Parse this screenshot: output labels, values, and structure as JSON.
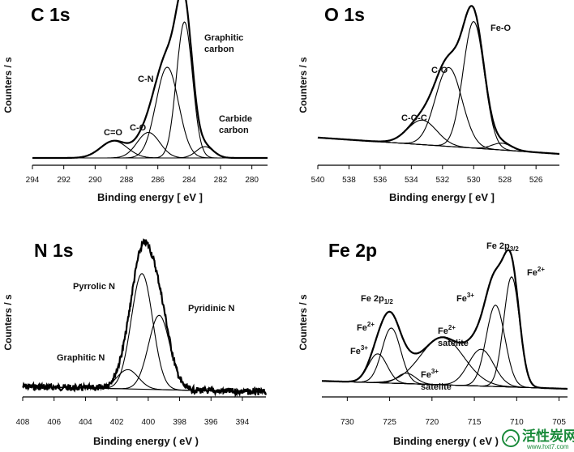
{
  "chart_data": [
    {
      "type": "line",
      "title": "C 1s",
      "xlabel": "Binding energy [ eV ]",
      "ylabel": "Counters / s",
      "xlim": [
        294,
        279
      ],
      "x_ticks": [
        294,
        292,
        290,
        288,
        286,
        284,
        282,
        280
      ],
      "annotations": [
        "C=O",
        "C-O",
        "C-N",
        "Graphitic carbon",
        "Carbide carbon"
      ],
      "peaks": [
        {
          "name": "C=O",
          "center": 288.8,
          "height": 12,
          "fwhm": 2.0
        },
        {
          "name": "C-O",
          "center": 286.6,
          "height": 18,
          "fwhm": 1.7
        },
        {
          "name": "C-N",
          "center": 285.4,
          "height": 64,
          "fwhm": 1.7
        },
        {
          "name": "Graphitic carbon",
          "center": 284.3,
          "height": 96,
          "fwhm": 1.2
        },
        {
          "name": "Carbide carbon",
          "center": 283.0,
          "height": 8,
          "fwhm": 1.3
        }
      ]
    },
    {
      "type": "line",
      "title": "O 1s",
      "xlabel": "Binding energy [ eV ]",
      "ylabel": "Counters / s",
      "xlim": [
        540,
        524.5
      ],
      "x_ticks": [
        540,
        538,
        536,
        534,
        532,
        530,
        528,
        526
      ],
      "annotations": [
        "Fe-O",
        "C-O",
        "C-O-C"
      ],
      "peaks": [
        {
          "name": "C-O-C",
          "center": 533.3,
          "height": 18,
          "fwhm": 2.2
        },
        {
          "name": "C-O",
          "center": 531.6,
          "height": 58,
          "fwhm": 2.0
        },
        {
          "name": "Fe-O",
          "center": 530.0,
          "height": 93,
          "fwhm": 1.6
        },
        {
          "name": "",
          "center": 528.2,
          "height": 5,
          "fwhm": 1.5
        }
      ]
    },
    {
      "type": "line",
      "title": "N 1s",
      "xlabel": "Binding energy ( eV )",
      "ylabel": "Counters / s",
      "xlim": [
        408,
        392.5
      ],
      "x_ticks": [
        408,
        406,
        404,
        402,
        400,
        398,
        396,
        394
      ],
      "annotations": [
        "Pyrrolic N",
        "Pyridinic N",
        "Graphitic N"
      ],
      "peaks": [
        {
          "name": "Graphitic N",
          "center": 401.3,
          "height": 14,
          "fwhm": 1.6
        },
        {
          "name": "Pyrrolic N",
          "center": 400.4,
          "height": 84,
          "fwhm": 1.6
        },
        {
          "name": "Pyridinic N",
          "center": 399.3,
          "height": 54,
          "fwhm": 1.6
        }
      ]
    },
    {
      "type": "line",
      "title": "Fe 2p",
      "xlabel": "Binding energy ( eV )",
      "ylabel": "Counters / s",
      "xlim": [
        733,
        704
      ],
      "x_ticks": [
        730,
        725,
        720,
        715,
        710,
        705
      ],
      "x_tick_labels": [
        "730",
        "725",
        "720",
        "715",
        "710",
        "705"
      ],
      "annotations": [
        "Fe 2p3/2",
        "Fe2+",
        "Fe3+",
        "Fe2+ satelite",
        "Fe 2p1/2",
        "Fe2+",
        "Fe3+",
        "Fe3+ satelite"
      ],
      "peaks": [
        {
          "name": "Fe3+",
          "center": 726.4,
          "height": 22,
          "fwhm": 2.6
        },
        {
          "name": "Fe2+",
          "center": 724.8,
          "height": 42,
          "fwhm": 2.6
        },
        {
          "name": "Fe2+ satelite",
          "center": 723.0,
          "height": 8,
          "fwhm": 2.5
        },
        {
          "name": "Fe3+ satelite",
          "center": 718.8,
          "height": 36,
          "fwhm": 6.0
        },
        {
          "name": "Fe2+ satelite",
          "center": 714.2,
          "height": 28,
          "fwhm": 3.5
        },
        {
          "name": "Fe3+",
          "center": 712.5,
          "height": 62,
          "fwhm": 2.6
        },
        {
          "name": "Fe2+",
          "center": 710.6,
          "height": 84,
          "fwhm": 2.2
        }
      ]
    }
  ],
  "watermark": {
    "text": "活性炭网",
    "url": "www.hxt7.com"
  },
  "colors": {
    "line": "#000000",
    "watermark": "#1a8a3a"
  }
}
